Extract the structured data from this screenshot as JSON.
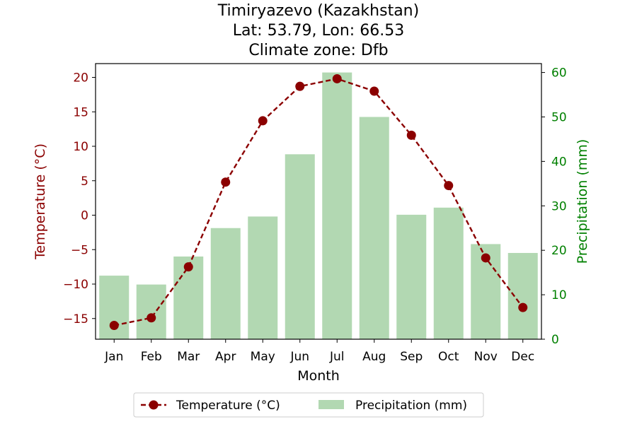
{
  "chart_data": {
    "type": "bar+line",
    "title_lines": [
      "Timiryazevo (Kazakhstan)",
      "Lat: 53.79, Lon: 66.53",
      "Climate zone: Dfb"
    ],
    "xlabel": "Month",
    "ylabel_left": "Temperature (°C)",
    "ylabel_right": "Precipitation (mm)",
    "categories": [
      "Jan",
      "Feb",
      "Mar",
      "Apr",
      "May",
      "Jun",
      "Jul",
      "Aug",
      "Sep",
      "Oct",
      "Nov",
      "Dec"
    ],
    "temperature": {
      "name": "Temperature (°C)",
      "values": [
        -16.0,
        -14.9,
        -7.5,
        4.8,
        13.7,
        18.7,
        19.8,
        18.0,
        11.6,
        4.3,
        -6.2,
        -13.4
      ],
      "color": "#8b0000",
      "style": "dashed line with circle markers"
    },
    "precipitation": {
      "name": "Precipitation (mm)",
      "values": [
        14.3,
        12.3,
        18.6,
        25.0,
        27.6,
        41.6,
        60.0,
        50.0,
        28.0,
        29.6,
        21.4,
        19.4
      ],
      "color": "#b2d8b2"
    },
    "ylim_left": [
      -18,
      22
    ],
    "yticks_left": [
      -15,
      -10,
      -5,
      0,
      5,
      10,
      15,
      20
    ],
    "ylim_right": [
      0,
      62
    ],
    "yticks_right": [
      0,
      10,
      20,
      30,
      40,
      50,
      60
    ],
    "left_axis_color": "#8b0000",
    "right_axis_color": "#008000",
    "grid": false,
    "legend_position": "bottom-center"
  }
}
